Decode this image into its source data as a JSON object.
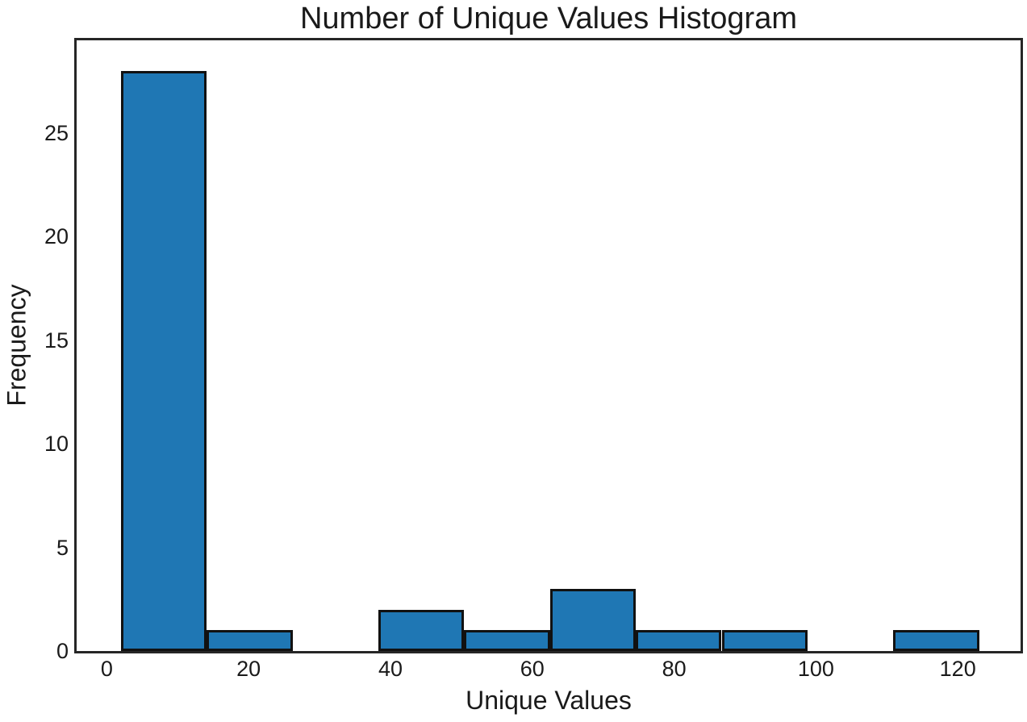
{
  "chart_data": {
    "type": "bar",
    "subtype": "histogram",
    "title": "Number of Unique Values Histogram",
    "xlabel": "Unique Values",
    "ylabel": "Frequency",
    "bin_edges": [
      2,
      14.1,
      26.2,
      38.3,
      50.4,
      62.5,
      74.6,
      86.7,
      98.8,
      110.9,
      123
    ],
    "frequencies": [
      28,
      1,
      0,
      2,
      1,
      3,
      1,
      1,
      0,
      1
    ],
    "xticks": [
      0,
      20,
      40,
      60,
      80,
      100,
      120
    ],
    "yticks": [
      0,
      5,
      10,
      15,
      20,
      25
    ],
    "xlim": [
      -4.25,
      128.85
    ],
    "ylim": [
      0,
      29.48
    ],
    "grid": false,
    "legend": null,
    "colors": {
      "bar_fill": "#1f77b4",
      "bar_edge": "#111111",
      "spine": "#262626",
      "text": "#1a1a1a",
      "background": "#ffffff"
    }
  }
}
